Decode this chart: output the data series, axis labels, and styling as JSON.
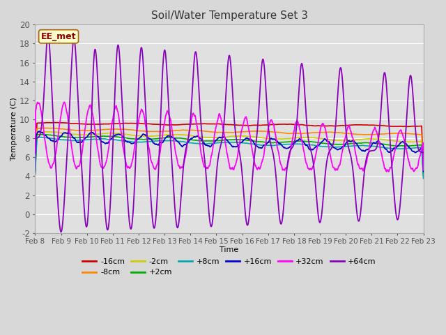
{
  "title": "Soil/Water Temperature Set 3",
  "xlabel": "Time",
  "ylabel": "Temperature (C)",
  "ylim": [
    -2,
    20
  ],
  "yticks": [
    -2,
    0,
    2,
    4,
    6,
    8,
    10,
    12,
    14,
    16,
    18,
    20
  ],
  "x_labels": [
    "Feb 8",
    "Feb 9",
    "Feb 10",
    "Feb 11",
    "Feb 12",
    "Feb 13",
    "Feb 14",
    "Feb 15",
    "Feb 16",
    "Feb 17",
    "Feb 18",
    "Feb 19",
    "Feb 20",
    "Feb 21",
    "Feb 22",
    "Feb 23"
  ],
  "fig_bg_color": "#d8d8d8",
  "plot_bg_color": "#e0e0e0",
  "grid_color": "#ffffff",
  "annotation_text": "EE_met",
  "annotation_bg": "#ffffcc",
  "annotation_border": "#aa6600",
  "annotation_text_color": "#880000",
  "series": [
    {
      "label": "-16cm",
      "color": "#cc0000"
    },
    {
      "label": "-8cm",
      "color": "#ff8800"
    },
    {
      "label": "-2cm",
      "color": "#cccc00"
    },
    {
      "label": "+2cm",
      "color": "#00aa00"
    },
    {
      "label": "+8cm",
      "color": "#00aaaa"
    },
    {
      "label": "+16cm",
      "color": "#0000cc"
    },
    {
      "label": "+32cm",
      "color": "#ff00ff"
    },
    {
      "label": "+64cm",
      "color": "#8800bb"
    }
  ],
  "num_points": 1500
}
